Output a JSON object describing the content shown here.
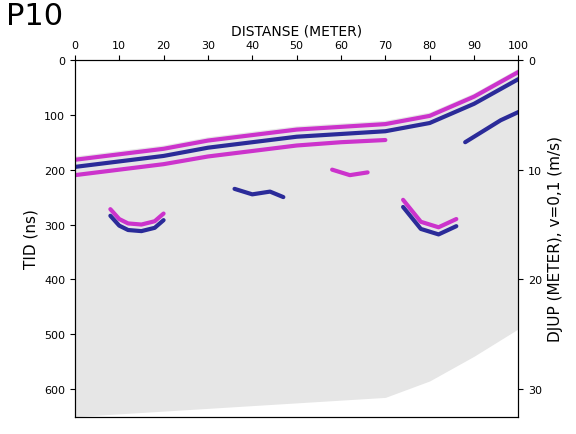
{
  "chart_data": {
    "type": "radargram",
    "title": "P10",
    "x_label": "DISTANSE (METER)",
    "y_label": "TID (ns)",
    "y2_label": "DJUP (METER), v=0,1 (m/s)",
    "xlim": [
      0,
      100
    ],
    "xticks": [
      0,
      10,
      20,
      30,
      40,
      50,
      60,
      70,
      80,
      90,
      100
    ],
    "ylim": [
      650,
      0
    ],
    "yticks": [
      0,
      100,
      200,
      300,
      400,
      500,
      600
    ],
    "y2lim": [
      32.5,
      0
    ],
    "y2ticks": [
      0,
      10,
      20,
      30
    ],
    "grid": false,
    "coverage": {
      "color": "#e6e6e6",
      "x": [
        0,
        10,
        20,
        30,
        40,
        50,
        60,
        70,
        80,
        90,
        100
      ],
      "top": [
        175,
        165,
        155,
        140,
        130,
        120,
        115,
        110,
        95,
        60,
        15
      ],
      "bottom": [
        650,
        645,
        640,
        635,
        630,
        625,
        620,
        615,
        585,
        540,
        490
      ]
    },
    "reflectors": [
      {
        "color": "#cc33cc",
        "x": [
          0,
          10,
          20,
          30,
          40,
          50,
          60,
          70,
          80,
          90,
          100
        ],
        "values": [
          182,
          172,
          162,
          147,
          137,
          127,
          122,
          117,
          102,
          67,
          22
        ]
      },
      {
        "color": "#2b2b99",
        "x": [
          0,
          10,
          20,
          30,
          40,
          50,
          60,
          70,
          80,
          90,
          100
        ],
        "values": [
          195,
          185,
          175,
          160,
          150,
          140,
          135,
          130,
          115,
          80,
          35
        ]
      },
      {
        "color": "#cc33cc",
        "x": [
          0,
          10,
          20,
          30,
          40,
          50,
          60,
          70
        ],
        "values": [
          210,
          200,
          190,
          176,
          166,
          156,
          150,
          146
        ]
      },
      {
        "color": "#cc33cc",
        "x": [
          8,
          10,
          12,
          15,
          18,
          20
        ],
        "values": [
          272,
          290,
          298,
          300,
          294,
          280
        ]
      },
      {
        "color": "#2b2b99",
        "x": [
          8,
          10,
          12,
          15,
          18,
          20
        ],
        "values": [
          284,
          302,
          310,
          312,
          306,
          292
        ]
      },
      {
        "color": "#2b2b99",
        "x": [
          36,
          40,
          44,
          47
        ],
        "values": [
          235,
          245,
          240,
          250
        ]
      },
      {
        "color": "#cc33cc",
        "x": [
          58,
          62,
          66
        ],
        "values": [
          200,
          210,
          205
        ]
      },
      {
        "color": "#cc33cc",
        "x": [
          74,
          78,
          82,
          86
        ],
        "values": [
          255,
          295,
          305,
          290
        ]
      },
      {
        "color": "#2b2b99",
        "x": [
          74,
          78,
          82,
          86
        ],
        "values": [
          268,
          308,
          318,
          303
        ]
      },
      {
        "color": "#2b2b99",
        "x": [
          88,
          92,
          96,
          100
        ],
        "values": [
          150,
          130,
          110,
          95
        ]
      }
    ]
  }
}
